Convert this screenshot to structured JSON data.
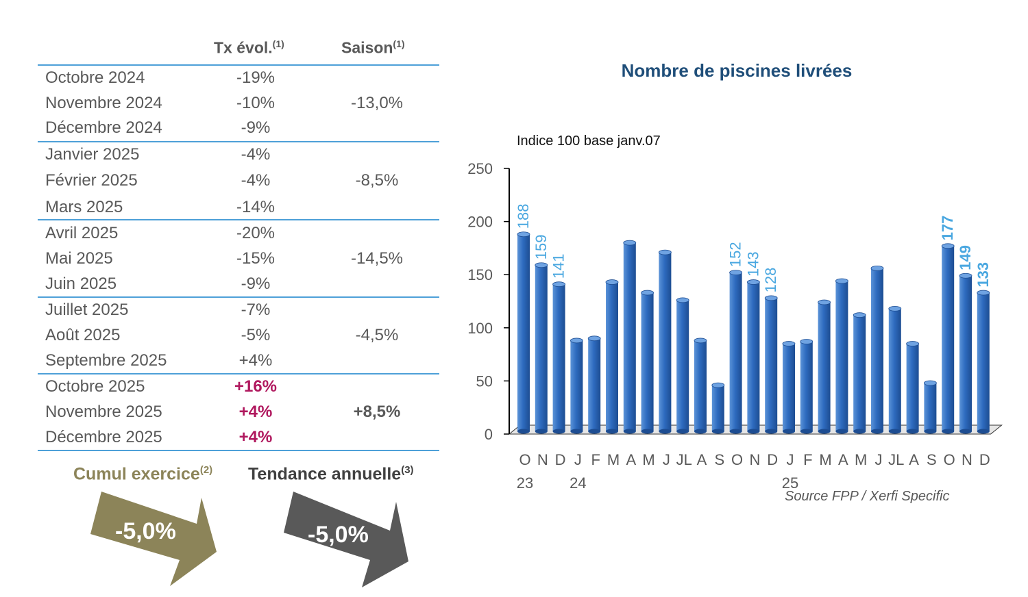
{
  "table": {
    "headers": {
      "tx": "Tx évol.",
      "tx_note": "(1)",
      "saison": "Saison",
      "saison_note": "(1)"
    },
    "rows": [
      {
        "month": "Octobre 2024",
        "tx": "-19%",
        "saison": ""
      },
      {
        "month": "Novembre 2024",
        "tx": "-10%",
        "saison": "-13,0%"
      },
      {
        "month": "Décembre 2024",
        "tx": "-9%",
        "saison": ""
      },
      {
        "month": "Janvier 2025",
        "tx": "-4%",
        "saison": ""
      },
      {
        "month": "Février 2025",
        "tx": "-4%",
        "saison": "-8,5%"
      },
      {
        "month": "Mars 2025",
        "tx": "-14%",
        "saison": ""
      },
      {
        "month": "Avril 2025",
        "tx": "-20%",
        "saison": ""
      },
      {
        "month": "Mai 2025",
        "tx": "-15%",
        "saison": "-14,5%"
      },
      {
        "month": "Juin 2025",
        "tx": "-9%",
        "saison": ""
      },
      {
        "month": "Juillet 2025",
        "tx": "-7%",
        "saison": ""
      },
      {
        "month": "Août 2025",
        "tx": "-5%",
        "saison": "-4,5%"
      },
      {
        "month": "Septembre 2025",
        "tx": "+4%",
        "saison": ""
      },
      {
        "month": "Octobre 2025",
        "tx": "+16%",
        "saison": ""
      },
      {
        "month": "Novembre 2025",
        "tx": "+4%",
        "saison": "+8,5%"
      },
      {
        "month": "Décembre 2025",
        "tx": "+4%",
        "saison": ""
      }
    ]
  },
  "summary": {
    "cumul_label": "Cumul exercice",
    "cumul_note": "(2)",
    "cumul_value": "-5,0%",
    "tendance_label": "Tendance annuelle",
    "tendance_note": "(3)",
    "tendance_value": "-5,0%"
  },
  "colors": {
    "bar": "#2e6bbf",
    "label": "#49a7e0",
    "highlight": "#b0185e",
    "cumul_arrow": "#8c8459",
    "tendance_arrow": "#595959",
    "title": "#1f4e79",
    "divider": "#4da0d8"
  },
  "chart_data": {
    "type": "bar",
    "title": "Nombre de piscines livrées",
    "subtitle": "Indice 100 base janv.07",
    "source": "Source FPP / Xerfi Specific",
    "categories": [
      "O",
      "N",
      "D",
      "J",
      "F",
      "M",
      "A",
      "M",
      "J",
      "JL",
      "A",
      "S",
      "O",
      "N",
      "D",
      "J",
      "F",
      "M",
      "A",
      "M",
      "J",
      "JL",
      "A",
      "S",
      "O",
      "N",
      "D"
    ],
    "year_labels": [
      {
        "index": 0,
        "label": "23"
      },
      {
        "index": 3,
        "label": "24"
      },
      {
        "index": 15,
        "label": "25"
      }
    ],
    "values": [
      188,
      159,
      141,
      88,
      90,
      143,
      180,
      133,
      171,
      126,
      88,
      46,
      152,
      143,
      128,
      85,
      87,
      124,
      144,
      112,
      156,
      118,
      85,
      48,
      177,
      149,
      133
    ],
    "data_labels": [
      {
        "index": 0,
        "label": "188",
        "bold": false
      },
      {
        "index": 1,
        "label": "159",
        "bold": false
      },
      {
        "index": 2,
        "label": "141",
        "bold": false
      },
      {
        "index": 12,
        "label": "152",
        "bold": false
      },
      {
        "index": 13,
        "label": "143",
        "bold": false
      },
      {
        "index": 14,
        "label": "128",
        "bold": false
      },
      {
        "index": 24,
        "label": "177",
        "bold": true
      },
      {
        "index": 25,
        "label": "149",
        "bold": true
      },
      {
        "index": 26,
        "label": "133",
        "bold": true
      }
    ],
    "ylim": [
      0,
      250
    ],
    "yticks": [
      0,
      50,
      100,
      150,
      200,
      250
    ],
    "grid": false
  }
}
